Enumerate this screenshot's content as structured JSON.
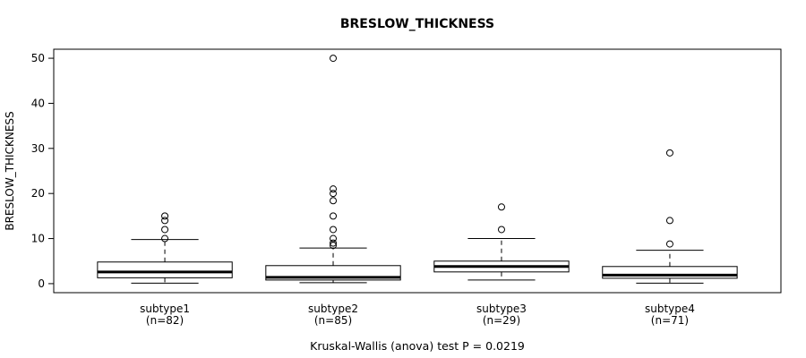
{
  "chart_data": {
    "type": "boxplot",
    "title": "BRESLOW_THICKNESS",
    "ylabel": "BRESLOW_THICKNESS",
    "xlabel": "",
    "caption": "Kruskal-Wallis (anova) test P = 0.0219",
    "p_value": "0.0219",
    "ylim": [
      0,
      50
    ],
    "yticks": [
      0,
      10,
      20,
      30,
      40,
      50
    ],
    "grid": false,
    "foreground": "#000000",
    "background": "#ffffff",
    "groups": [
      {
        "label": "subtype1",
        "n_label": "(n=82)",
        "whisker_low": 0.1,
        "q1": 1.3,
        "median": 2.6,
        "q3": 4.8,
        "whisker_high": 9.8,
        "outliers": [
          10,
          12,
          14,
          15
        ]
      },
      {
        "label": "subtype2",
        "n_label": "(n=85)",
        "whisker_low": 0.2,
        "q1": 0.8,
        "median": 1.4,
        "q3": 4.0,
        "whisker_high": 7.9,
        "outliers": [
          8.5,
          9,
          10,
          12,
          15,
          18.4,
          20,
          21,
          50
        ]
      },
      {
        "label": "subtype3",
        "n_label": "(n=29)",
        "whisker_low": 0.8,
        "q1": 2.6,
        "median": 3.8,
        "q3": 5.0,
        "whisker_high": 10,
        "outliers": [
          12,
          17
        ]
      },
      {
        "label": "subtype4",
        "n_label": "(n=71)",
        "whisker_low": 0.1,
        "q1": 1.2,
        "median": 1.9,
        "q3": 3.8,
        "whisker_high": 7.4,
        "outliers": [
          8.8,
          14,
          29
        ]
      }
    ]
  }
}
